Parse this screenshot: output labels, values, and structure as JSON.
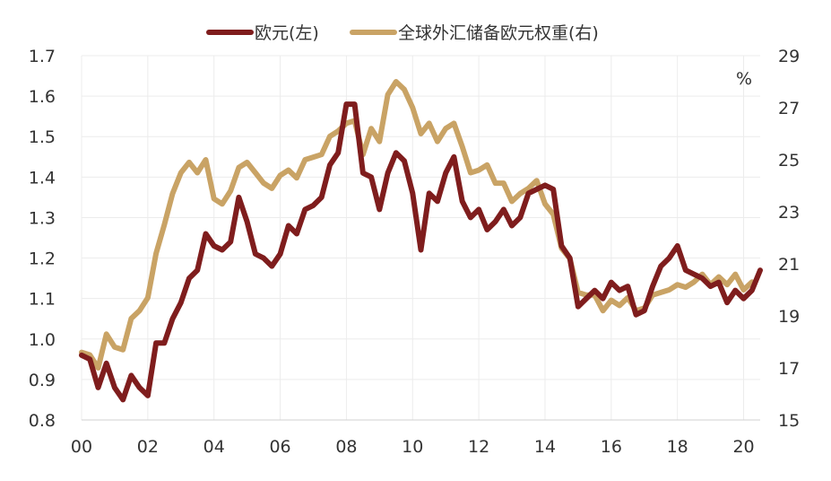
{
  "chart_data": {
    "type": "line",
    "legend_position": "top-center",
    "grid": true,
    "x": {
      "min": 0,
      "max": 20.5,
      "tick_values": [
        0,
        2,
        4,
        6,
        8,
        10,
        12,
        14,
        16,
        18,
        20
      ],
      "tick_labels": [
        "00",
        "02",
        "04",
        "06",
        "08",
        "10",
        "12",
        "14",
        "16",
        "18",
        "20"
      ]
    },
    "y_left": {
      "min": 0.8,
      "max": 1.7,
      "tick_values": [
        0.8,
        0.9,
        1.0,
        1.1,
        1.2,
        1.3,
        1.4,
        1.5,
        1.6,
        1.7
      ],
      "tick_labels": [
        "0.8",
        "0.9",
        "1.0",
        "1.1",
        "1.2",
        "1.3",
        "1.4",
        "1.5",
        "1.6",
        "1.7"
      ]
    },
    "y_right": {
      "min": 15,
      "max": 29,
      "tick_values": [
        15,
        17,
        19,
        21,
        23,
        25,
        27,
        29
      ],
      "tick_labels": [
        "15",
        "17",
        "19",
        "21",
        "23",
        "25",
        "27",
        "29"
      ],
      "unit": "%"
    },
    "series": [
      {
        "name": "欧元(左)",
        "axis": "left",
        "color": "#7f1d1d",
        "x": [
          0,
          0.25,
          0.5,
          0.75,
          1,
          1.25,
          1.5,
          1.75,
          2,
          2.25,
          2.5,
          2.75,
          3,
          3.25,
          3.5,
          3.75,
          4,
          4.25,
          4.5,
          4.75,
          5,
          5.25,
          5.5,
          5.75,
          6,
          6.25,
          6.5,
          6.75,
          7,
          7.25,
          7.5,
          7.75,
          8,
          8.25,
          8.5,
          8.75,
          9,
          9.25,
          9.5,
          9.75,
          10,
          10.25,
          10.5,
          10.75,
          11,
          11.25,
          11.5,
          11.75,
          12,
          12.25,
          12.5,
          12.75,
          13,
          13.25,
          13.5,
          13.75,
          14,
          14.25,
          14.5,
          14.75,
          15,
          15.25,
          15.5,
          15.75,
          16,
          16.25,
          16.5,
          16.75,
          17,
          17.25,
          17.5,
          17.75,
          18,
          18.25,
          18.5,
          18.75,
          19,
          19.25,
          19.5,
          19.75,
          20,
          20.25,
          20.5
        ],
        "values": [
          0.96,
          0.95,
          0.88,
          0.94,
          0.88,
          0.85,
          0.91,
          0.88,
          0.86,
          0.99,
          0.99,
          1.05,
          1.09,
          1.15,
          1.17,
          1.26,
          1.23,
          1.22,
          1.24,
          1.35,
          1.29,
          1.21,
          1.2,
          1.18,
          1.21,
          1.28,
          1.26,
          1.32,
          1.33,
          1.35,
          1.43,
          1.46,
          1.58,
          1.58,
          1.41,
          1.4,
          1.32,
          1.41,
          1.46,
          1.44,
          1.36,
          1.22,
          1.36,
          1.34,
          1.41,
          1.45,
          1.34,
          1.3,
          1.32,
          1.27,
          1.29,
          1.32,
          1.28,
          1.3,
          1.36,
          1.37,
          1.38,
          1.37,
          1.23,
          1.2,
          1.08,
          1.1,
          1.12,
          1.1,
          1.14,
          1.12,
          1.13,
          1.06,
          1.07,
          1.13,
          1.18,
          1.2,
          1.23,
          1.17,
          1.16,
          1.15,
          1.13,
          1.14,
          1.09,
          1.12,
          1.1,
          1.12,
          1.17
        ]
      },
      {
        "name": "全球外汇储备欧元权重(右)",
        "axis": "right",
        "color": "#c9a365",
        "x": [
          0,
          0.25,
          0.5,
          0.75,
          1,
          1.25,
          1.5,
          1.75,
          2,
          2.25,
          2.5,
          2.75,
          3,
          3.25,
          3.5,
          3.75,
          4,
          4.25,
          4.5,
          4.75,
          5,
          5.25,
          5.5,
          5.75,
          6,
          6.25,
          6.5,
          6.75,
          7,
          7.25,
          7.5,
          7.75,
          8,
          8.25,
          8.5,
          8.75,
          9,
          9.25,
          9.5,
          9.75,
          10,
          10.25,
          10.5,
          10.75,
          11,
          11.25,
          11.5,
          11.75,
          12,
          12.25,
          12.5,
          12.75,
          13,
          13.25,
          13.5,
          13.75,
          14,
          14.25,
          14.5,
          14.75,
          15,
          15.25,
          15.5,
          15.75,
          16,
          16.25,
          16.5,
          16.75,
          17,
          17.25,
          17.5,
          17.75,
          18,
          18.25,
          18.5,
          18.75,
          19,
          19.25,
          19.5,
          19.75,
          20,
          20.25
        ],
        "values": [
          17.6,
          17.5,
          17.0,
          18.3,
          17.8,
          17.7,
          18.9,
          19.2,
          19.7,
          21.4,
          22.5,
          23.7,
          24.5,
          24.9,
          24.5,
          25.0,
          23.5,
          23.3,
          23.8,
          24.7,
          24.9,
          24.5,
          24.1,
          23.9,
          24.4,
          24.6,
          24.3,
          25.0,
          25.1,
          25.2,
          25.9,
          26.1,
          26.4,
          26.5,
          25.2,
          26.2,
          25.7,
          27.5,
          28.0,
          27.7,
          27.0,
          26.0,
          26.4,
          25.7,
          26.2,
          26.4,
          25.5,
          24.5,
          24.6,
          24.8,
          24.1,
          24.1,
          23.4,
          23.7,
          23.9,
          24.2,
          23.3,
          22.9,
          21.6,
          21.2,
          19.9,
          19.8,
          19.8,
          19.2,
          19.6,
          19.4,
          19.7,
          19.2,
          19.3,
          19.8,
          19.9,
          20.0,
          20.2,
          20.1,
          20.3,
          20.6,
          20.2,
          20.5,
          20.2,
          20.6,
          20.0,
          20.3
        ]
      }
    ]
  }
}
